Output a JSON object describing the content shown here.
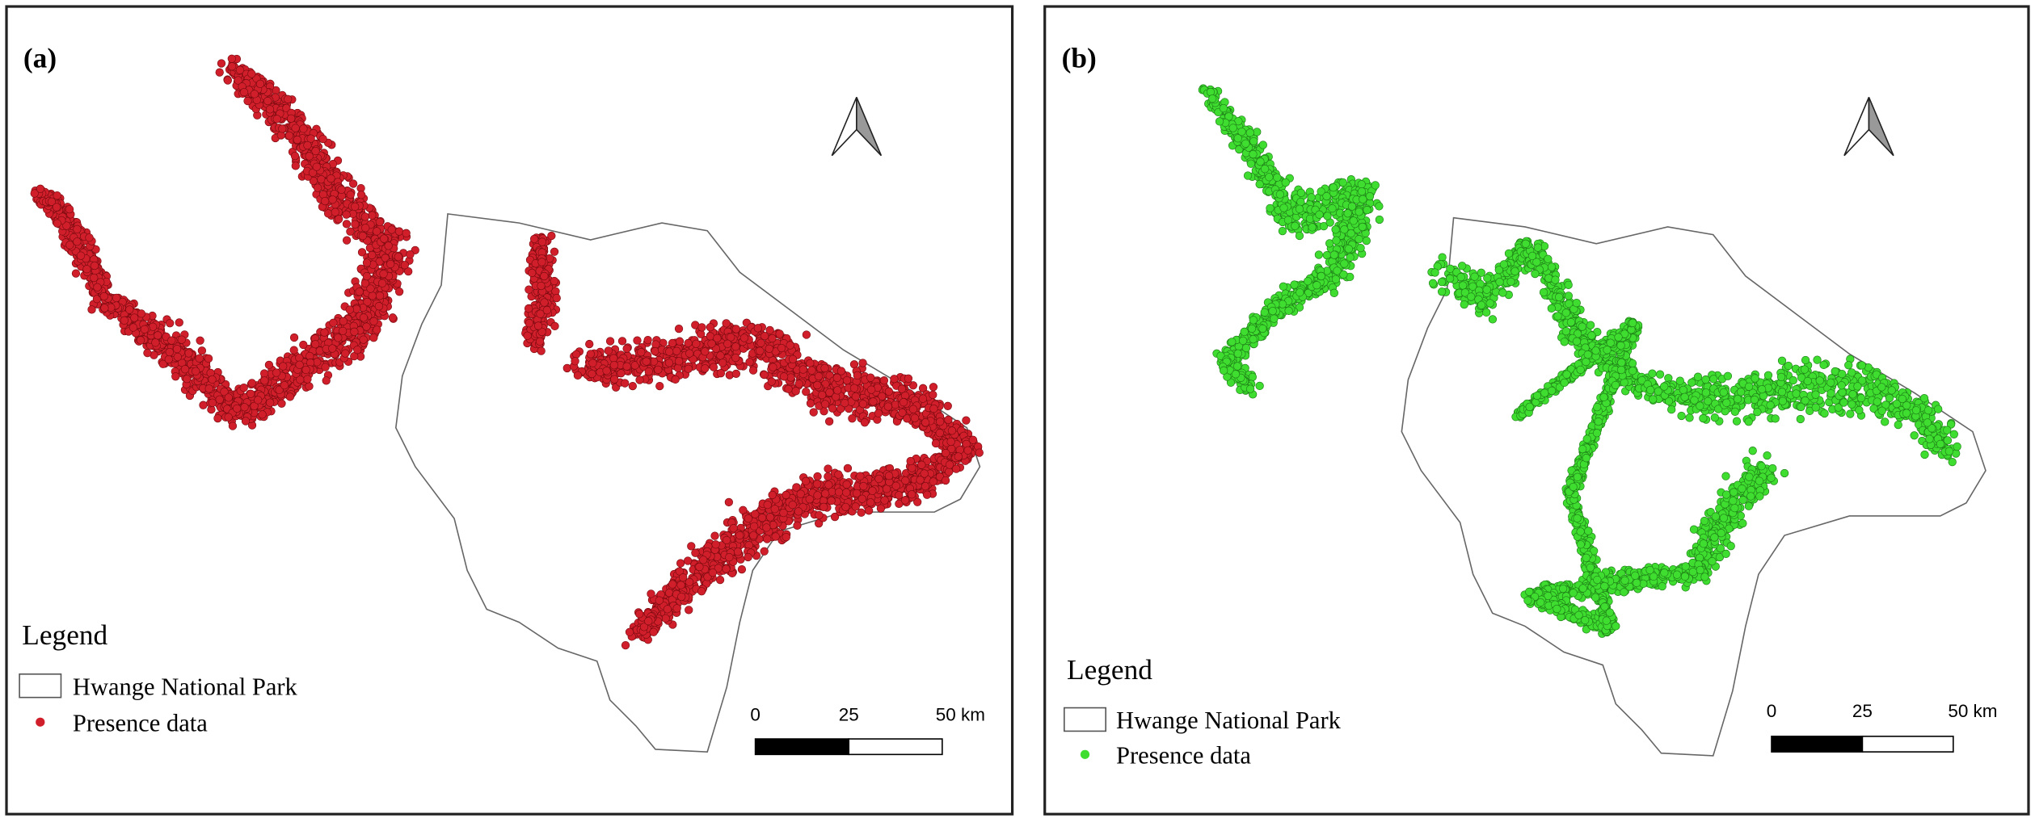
{
  "panels": [
    {
      "label": "(a)",
      "color": "#d01f2b",
      "legend": {
        "title": "Legend",
        "items": [
          "Hwange National Park",
          "Presence data"
        ]
      },
      "scale_bar": {
        "labels": [
          "0",
          "25",
          "50 km"
        ]
      }
    },
    {
      "label": "(b)",
      "color": "#3fdd30",
      "legend": {
        "title": "Legend",
        "items": [
          "Hwange National Park",
          "Presence data"
        ]
      },
      "scale_bar": {
        "labels": [
          "0",
          "25",
          "50 km"
        ]
      }
    }
  ]
}
